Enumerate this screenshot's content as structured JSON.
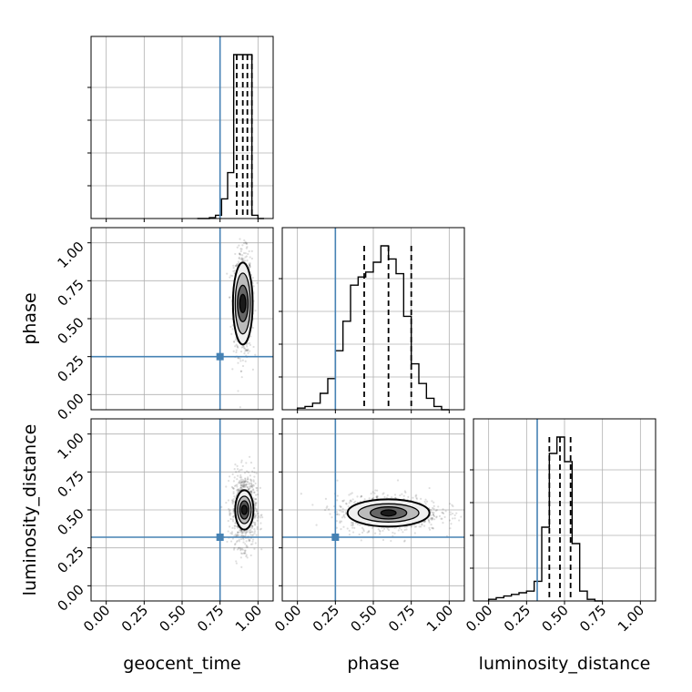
{
  "chart_data": {
    "type": "corner",
    "parameters": [
      "geocent_time",
      "phase",
      "luminosity_distance"
    ],
    "axis_range": [
      -0.1,
      1.1
    ],
    "tick_values": [
      0.0,
      0.25,
      0.5,
      0.75,
      1.0
    ],
    "tick_labels": [
      "0.00",
      "0.25",
      "0.50",
      "0.75",
      "1.00"
    ],
    "grid": true,
    "truths": {
      "geocent_time": 0.75,
      "phase": 0.25,
      "luminosity_distance": 0.32
    },
    "colors": {
      "truth": "#4682b4",
      "hist": "#000000",
      "grid": "#b0b0b0",
      "scatter": "#000000"
    },
    "marginals": [
      {
        "parameter": "geocent_time",
        "bin_edges": [
          0.6,
          0.64,
          0.68,
          0.72,
          0.76,
          0.8,
          0.84,
          0.88,
          0.92,
          0.96,
          1.0,
          1.04
        ],
        "counts": [
          0.0,
          0.0,
          0.005,
          0.02,
          0.12,
          0.28,
          1.0,
          1.0,
          1.0,
          0.02,
          0.0
        ],
        "quantiles": [
          0.86,
          0.9,
          0.93,
          0.96
        ]
      },
      {
        "parameter": "phase",
        "bin_edges": [
          0.0,
          0.05,
          0.1,
          0.15,
          0.2,
          0.25,
          0.3,
          0.35,
          0.4,
          0.45,
          0.5,
          0.55,
          0.6,
          0.65,
          0.7,
          0.75,
          0.8,
          0.85,
          0.9,
          0.95,
          1.0
        ],
        "counts": [
          0.01,
          0.02,
          0.04,
          0.1,
          0.19,
          0.36,
          0.54,
          0.76,
          0.81,
          0.84,
          0.9,
          1.0,
          0.92,
          0.83,
          0.57,
          0.28,
          0.16,
          0.07,
          0.02,
          0.0
        ],
        "quantiles": [
          0.44,
          0.6,
          0.75
        ]
      },
      {
        "parameter": "luminosity_distance",
        "bin_edges": [
          0.0,
          0.05,
          0.1,
          0.15,
          0.2,
          0.25,
          0.3,
          0.35,
          0.4,
          0.45,
          0.5,
          0.55,
          0.6,
          0.65,
          0.7,
          0.75
        ],
        "counts": [
          0.01,
          0.02,
          0.03,
          0.04,
          0.05,
          0.06,
          0.12,
          0.45,
          0.9,
          1.0,
          0.85,
          0.35,
          0.06,
          0.01,
          0.0
        ],
        "quantiles": [
          0.4,
          0.47,
          0.54
        ]
      }
    ],
    "joints": [
      {
        "x": "geocent_time",
        "y": "phase",
        "center": [
          0.9,
          0.6
        ],
        "sigma": [
          0.03,
          0.17
        ],
        "levels": [
          {
            "rx": 0.02,
            "ry": 0.06,
            "fill": "#1a1a1a"
          },
          {
            "rx": 0.035,
            "ry": 0.12,
            "fill": "#666666"
          },
          {
            "rx": 0.05,
            "ry": 0.2,
            "fill": "#bbbbbb"
          },
          {
            "rx": 0.065,
            "ry": 0.27,
            "fill": "#f0f0f0"
          }
        ]
      },
      {
        "x": "geocent_time",
        "y": "luminosity_distance",
        "center": [
          0.91,
          0.5
        ],
        "sigma": [
          0.04,
          0.12
        ],
        "levels": [
          {
            "rx": 0.018,
            "ry": 0.03,
            "fill": "#1a1a1a"
          },
          {
            "rx": 0.03,
            "ry": 0.06,
            "fill": "#555555"
          },
          {
            "rx": 0.045,
            "ry": 0.09,
            "fill": "#bbbbbb"
          },
          {
            "rx": 0.06,
            "ry": 0.13,
            "fill": "#f0f0f0"
          }
        ]
      },
      {
        "x": "phase",
        "y": "luminosity_distance",
        "center": [
          0.6,
          0.48
        ],
        "sigma": [
          0.17,
          0.06
        ],
        "levels": [
          {
            "rx": 0.05,
            "ry": 0.02,
            "fill": "#1a1a1a"
          },
          {
            "rx": 0.12,
            "ry": 0.04,
            "fill": "#666666"
          },
          {
            "rx": 0.2,
            "ry": 0.06,
            "fill": "#bbbbbb"
          },
          {
            "rx": 0.27,
            "ry": 0.09,
            "fill": "#f0f0f0"
          }
        ]
      }
    ]
  }
}
